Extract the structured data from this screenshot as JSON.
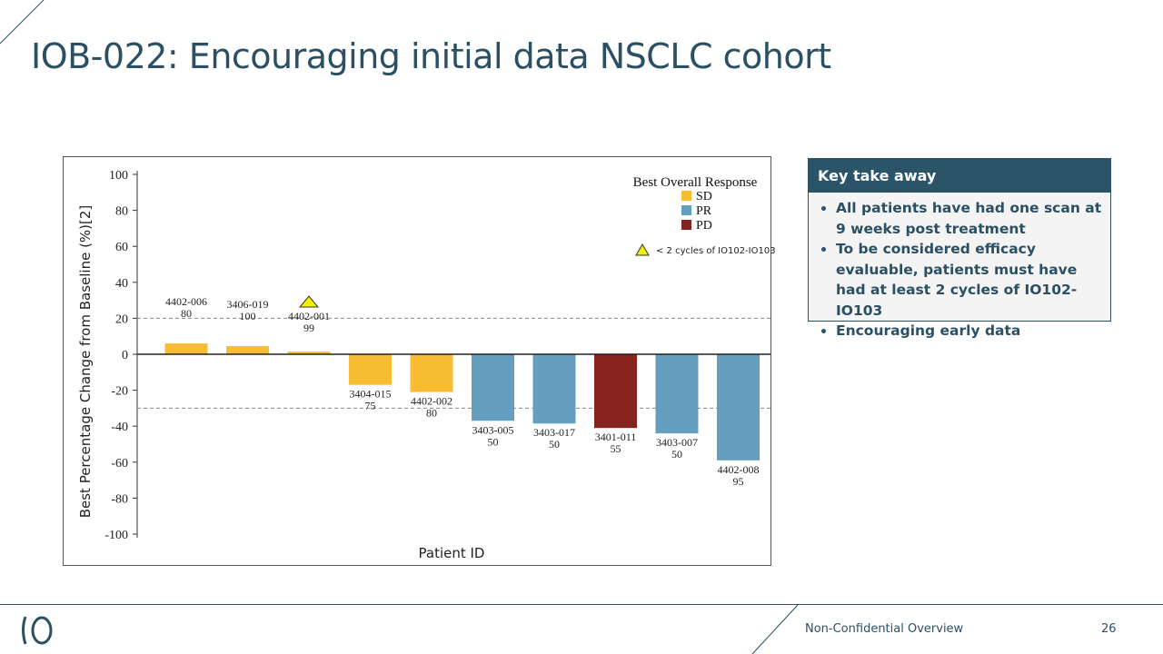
{
  "title": "IOB-022: Encouraging initial data NSCLC cohort",
  "key": {
    "heading": "Key take away",
    "bullets": [
      "All patients have had one scan at 9 weeks post treatment",
      "To be considered efficacy evaluable, patients must have had at least 2 cycles of IO102-IO103",
      "Encouraging early data"
    ]
  },
  "footer": {
    "text": "Non-Confidential Overview",
    "page": "26"
  },
  "colors": {
    "SD": "#f7bc32",
    "PR": "#659fbf",
    "PD": "#86231f",
    "brand": "#2b4f63"
  },
  "chart_data": {
    "type": "bar",
    "xlabel": "Patient ID",
    "ylabel": "Best Percentage Change from Baseline (%)[2]",
    "ylim": [
      -100,
      100
    ],
    "yticks": [
      100,
      80,
      60,
      40,
      20,
      0,
      -20,
      -40,
      -60,
      -80,
      -100
    ],
    "reference_lines": [
      20,
      -30
    ],
    "legend": {
      "title": "Best Overall Response",
      "entries": [
        "SD",
        "PR",
        "PD"
      ],
      "marker_note": "< 2 cycles of IO102-IO103",
      "placement": "top-right"
    },
    "bars": [
      {
        "id": "4402-006",
        "label2": "80",
        "value": 6,
        "response": "SD"
      },
      {
        "id": "3406-019",
        "label2": "100",
        "value": 4.5,
        "response": "SD"
      },
      {
        "id": "4402-001",
        "label2": "99",
        "value": 1.5,
        "response": "SD",
        "marker": true
      },
      {
        "id": "3404-015",
        "label2": "75",
        "value": -17,
        "response": "SD"
      },
      {
        "id": "4402-002",
        "label2": "80",
        "value": -21,
        "response": "SD"
      },
      {
        "id": "3403-005",
        "label2": "50",
        "value": -37,
        "response": "PR"
      },
      {
        "id": "3403-017",
        "label2": "50",
        "value": -38.5,
        "response": "PR"
      },
      {
        "id": "3401-011",
        "label2": "55",
        "value": -41,
        "response": "PD"
      },
      {
        "id": "3403-007",
        "label2": "50",
        "value": -44,
        "response": "PR"
      },
      {
        "id": "4402-008",
        "label2": "95",
        "value": -59,
        "response": "PR"
      }
    ]
  }
}
